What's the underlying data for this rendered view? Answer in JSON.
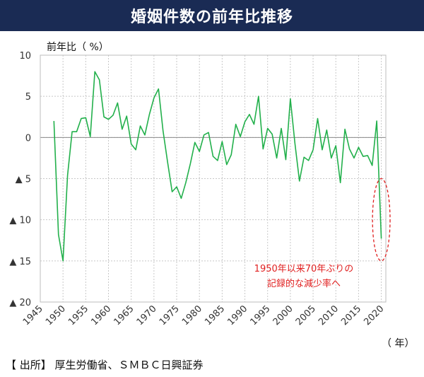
{
  "title": "婚姻件数の前年比推移",
  "source": "【 出所】 厚生労働省、ＳＭＢＣ日興証券",
  "colors": {
    "title_bg": "#1a2b54",
    "line": "#22b04b",
    "annotation": "#e02020",
    "grid": "#c8c8c8"
  },
  "chart_data": {
    "type": "line",
    "ylabel": "前年比（ %）",
    "xlabel": "（ 年）",
    "xlim": [
      1945,
      2021
    ],
    "ylim": [
      -20,
      10
    ],
    "y_ticks": [
      {
        "value": 10,
        "label": "10"
      },
      {
        "value": 5,
        "label": "5"
      },
      {
        "value": 0,
        "label": "0"
      },
      {
        "value": -5,
        "label": "▲ 5"
      },
      {
        "value": -10,
        "label": "▲ 10"
      },
      {
        "value": -15,
        "label": "▲ 15"
      },
      {
        "value": -20,
        "label": "▲ 20"
      }
    ],
    "x_ticks": [
      1945,
      1950,
      1955,
      1960,
      1965,
      1970,
      1975,
      1980,
      1985,
      1990,
      1995,
      2000,
      2005,
      2010,
      2015,
      2020
    ],
    "grid": true,
    "annotation": {
      "lines": [
        "1950年以来70年ぶりの",
        "記録的な減少率へ"
      ],
      "highlight_range": {
        "x": [
          2019,
          2021
        ],
        "y": [
          -15,
          -5
        ]
      }
    },
    "series": [
      {
        "x": [
          1948,
          1949,
          1950,
          1951,
          1952,
          1953,
          1954,
          1955,
          1956,
          1957,
          1958,
          1959,
          1960,
          1961,
          1962,
          1963,
          1964,
          1965,
          1966,
          1967,
          1968,
          1969,
          1970,
          1971,
          1972,
          1973,
          1974,
          1975,
          1976,
          1977,
          1978,
          1979,
          1980,
          1981,
          1982,
          1983,
          1984,
          1985,
          1986,
          1987,
          1988,
          1989,
          1990,
          1991,
          1992,
          1993,
          1994,
          1995,
          1996,
          1997,
          1998,
          1999,
          2000,
          2001,
          2002,
          2003,
          2004,
          2005,
          2006,
          2007,
          2008,
          2009,
          2010,
          2011,
          2012,
          2013,
          2014,
          2015,
          2016,
          2017,
          2018,
          2019,
          2020
        ],
        "values": [
          2.0,
          -11.8,
          -15.0,
          -4.6,
          0.7,
          0.7,
          2.3,
          2.4,
          0.1,
          8.0,
          7.0,
          2.5,
          2.2,
          2.7,
          4.2,
          1.0,
          2.6,
          -0.8,
          -1.5,
          1.4,
          0.3,
          2.8,
          4.8,
          5.9,
          0.8,
          -3.0,
          -6.6,
          -6.0,
          -7.4,
          -5.5,
          -3.2,
          -0.6,
          -1.7,
          0.3,
          0.6,
          -2.3,
          -2.8,
          -0.5,
          -3.3,
          -2.1,
          1.6,
          0.1,
          1.9,
          2.8,
          1.6,
          5.0,
          -1.4,
          1.1,
          0.4,
          -2.5,
          1.1,
          -2.7,
          4.7,
          -0.7,
          -5.3,
          -2.4,
          -2.8,
          -1.5,
          2.3,
          -1.5,
          0.9,
          -2.5,
          -1.0,
          -5.5,
          1.0,
          -1.4,
          -2.5,
          -1.2,
          -2.3,
          -2.2,
          -3.4,
          2.0,
          -12.3
        ]
      }
    ]
  }
}
